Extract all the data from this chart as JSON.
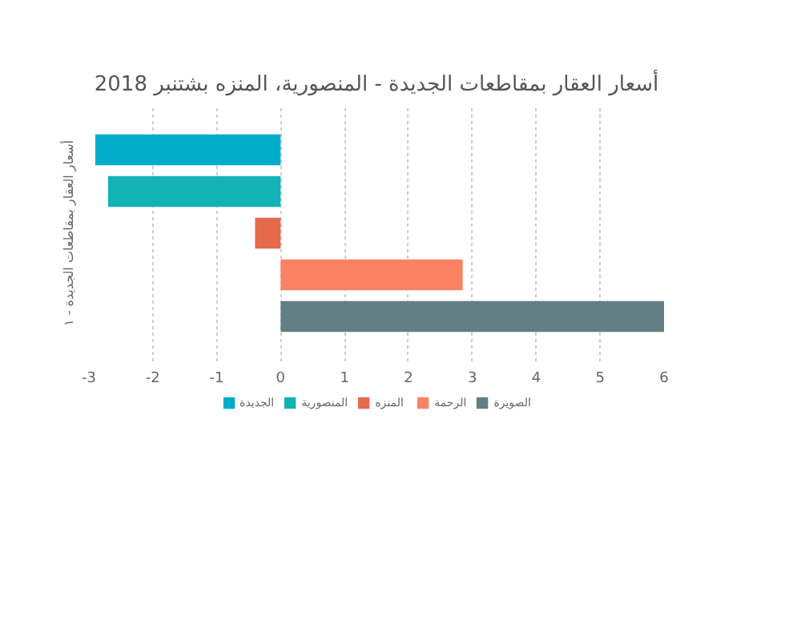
{
  "chart_data": {
    "type": "bar",
    "orientation": "horizontal",
    "title": "أسعار العقار بمقاطعات الجديدة - المنصورية، المنزه بشتنبر 2018",
    "ylabel": "أسعار العقار بمقاطعات الجديدة - ١",
    "categories": [
      null
    ],
    "series": [
      {
        "name": "الجديدة",
        "color": "#00acc9",
        "values": [
          -2.9
        ]
      },
      {
        "name": "المنصورية",
        "color": "#12b2b5",
        "values": [
          -2.7
        ]
      },
      {
        "name": "المنزه",
        "color": "#e5694b",
        "values": [
          -0.4
        ]
      },
      {
        "name": "الرحمة",
        "color": "#fb8264",
        "values": [
          2.85
        ]
      },
      {
        "name": "الصويرة",
        "color": "#627f82",
        "values": [
          6
        ]
      }
    ],
    "xlim": [
      -3,
      6
    ],
    "xticks": [
      -3,
      -2,
      -1,
      0,
      1,
      2,
      3,
      4,
      5,
      6
    ],
    "grid": "x",
    "legend": "bottom"
  }
}
